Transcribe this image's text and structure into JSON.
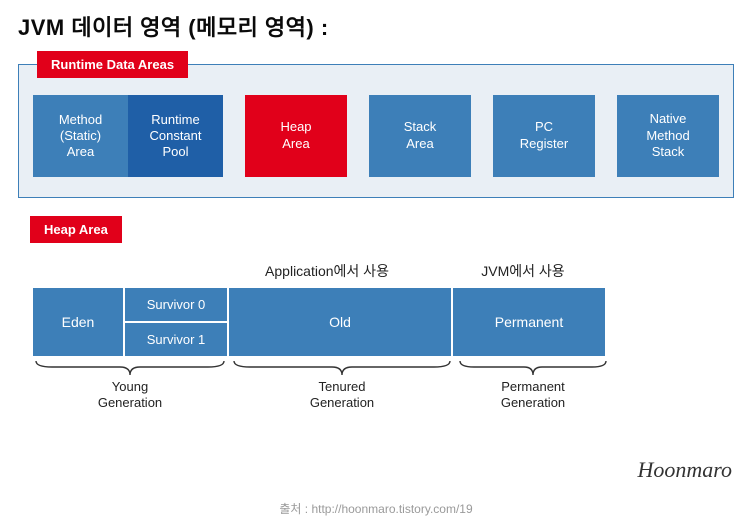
{
  "title": "JVM 데이터 영역 (메모리 영역) :",
  "colors": {
    "red": "#e1001a",
    "blue": "#3d7fb8",
    "darkblue": "#1f5fa7",
    "panel_bg": "#e9eff5",
    "panel_border": "#3d7fb8",
    "text_dark": "#0a0a0a",
    "brace": "#333333"
  },
  "rda": {
    "tag": "Runtime Data Areas",
    "boxes": {
      "method": {
        "left": "Method\n(Static)\nArea",
        "right": "Runtime\nConstant\nPool"
      },
      "heap": "Heap\nArea",
      "stack": "Stack\nArea",
      "pc": "PC\nRegister",
      "native": "Native\nMethod\nStack"
    }
  },
  "heap": {
    "tag": "Heap Area",
    "top_labels": {
      "app": "Application에서 사용",
      "jvm": "JVM에서 사용"
    },
    "cells": {
      "eden": "Eden",
      "survivor0": "Survivor 0",
      "survivor1": "Survivor 1",
      "old": "Old",
      "permanent": "Permanent"
    },
    "generations": {
      "young": "Young\nGeneration",
      "tenured": "Tenured\nGeneration",
      "permanent": "Permanent\nGeneration"
    }
  },
  "signature": "Hoonmaro",
  "source": "출처 : http://hoonmaro.tistory.com/19"
}
